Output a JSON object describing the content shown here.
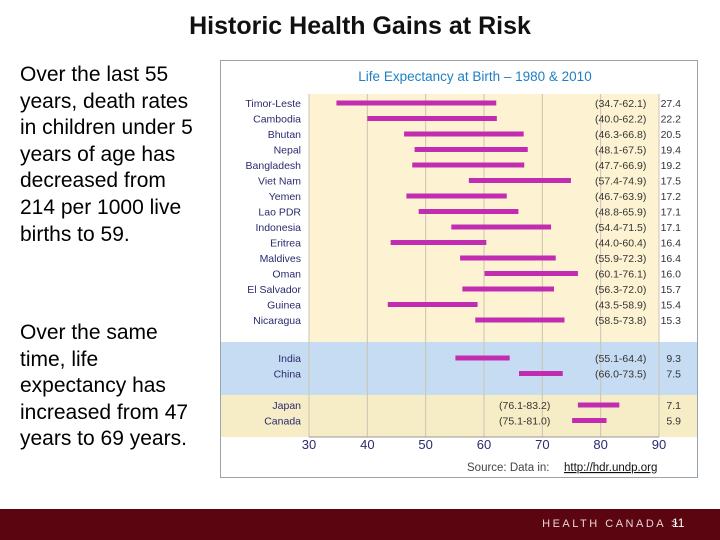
{
  "slide": {
    "title": "Historic Health Gains at Risk",
    "paragraph1": "Over the last 55 years, death rates in children under 5 years of age has decreased from 214 per 1000 live births to 59.",
    "paragraph2": "Over the same time, life expectancy has increased from 47 years to 69 years.",
    "footer_brand": "HEALTH CANADA >",
    "page_number": "11"
  },
  "colors": {
    "bar": "#c12cb0",
    "band_group1": "#fdf3d3",
    "band_group2": "#c6dcf3",
    "band_group3": "#f6ecc6",
    "title": "#1f7fc2",
    "footer_bg": "#5b0510"
  },
  "chart_data": {
    "type": "range-bar",
    "title": "Life Expectancy at Birth – 1980 & 2010",
    "source_label": "Source: Data in:",
    "source_link": "http://hdr.undp.org",
    "xlim": [
      30,
      90
    ],
    "x_ticks": [
      30,
      40,
      50,
      60,
      70,
      80,
      90
    ],
    "series": [
      {
        "name": "Timor-Leste",
        "start": 34.7,
        "end": 62.1,
        "range_label": "(34.7-62.1)",
        "gain": "27.4",
        "group": 1
      },
      {
        "name": "Cambodia",
        "start": 40.0,
        "end": 62.2,
        "range_label": "(40.0-62.2)",
        "gain": "22.2",
        "group": 1
      },
      {
        "name": "Bhutan",
        "start": 46.3,
        "end": 66.8,
        "range_label": "(46.3-66.8)",
        "gain": "20.5",
        "group": 1
      },
      {
        "name": "Nepal",
        "start": 48.1,
        "end": 67.5,
        "range_label": "(48.1-67.5)",
        "gain": "19.4",
        "group": 1
      },
      {
        "name": "Bangladesh",
        "start": 47.7,
        "end": 66.9,
        "range_label": "(47.7-66.9)",
        "gain": "19.2",
        "group": 1
      },
      {
        "name": "Viet Nam",
        "start": 57.4,
        "end": 74.9,
        "range_label": "(57.4-74.9)",
        "gain": "17.5",
        "group": 1
      },
      {
        "name": "Yemen",
        "start": 46.7,
        "end": 63.9,
        "range_label": "(46.7-63.9)",
        "gain": "17.2",
        "group": 1
      },
      {
        "name": "Lao PDR",
        "start": 48.8,
        "end": 65.9,
        "range_label": "(48.8-65.9)",
        "gain": "17.1",
        "group": 1
      },
      {
        "name": "Indonesia",
        "start": 54.4,
        "end": 71.5,
        "range_label": "(54.4-71.5)",
        "gain": "17.1",
        "group": 1
      },
      {
        "name": "Eritrea",
        "start": 44.0,
        "end": 60.4,
        "range_label": "(44.0-60.4)",
        "gain": "16.4",
        "group": 1
      },
      {
        "name": "Maldives",
        "start": 55.9,
        "end": 72.3,
        "range_label": "(55.9-72.3)",
        "gain": "16.4",
        "group": 1
      },
      {
        "name": "Oman",
        "start": 60.1,
        "end": 76.1,
        "range_label": "(60.1-76.1)",
        "gain": "16.0",
        "group": 1
      },
      {
        "name": "El Salvador",
        "start": 56.3,
        "end": 72.0,
        "range_label": "(56.3-72.0)",
        "gain": "15.7",
        "group": 1
      },
      {
        "name": "Guinea",
        "start": 43.5,
        "end": 58.9,
        "range_label": "(43.5-58.9)",
        "gain": "15.4",
        "group": 1
      },
      {
        "name": "Nicaragua",
        "start": 58.5,
        "end": 73.8,
        "range_label": "(58.5-73.8)",
        "gain": "15.3",
        "group": 1
      },
      {
        "name": "India",
        "start": 55.1,
        "end": 64.4,
        "range_label": "(55.1-64.4)",
        "gain": "9.3",
        "group": 2
      },
      {
        "name": "China",
        "start": 66.0,
        "end": 73.5,
        "range_label": "(66.0-73.5)",
        "gain": "7.5",
        "group": 2
      },
      {
        "name": "Japan",
        "start": 76.1,
        "end": 83.2,
        "range_label": "(76.1-83.2)",
        "gain": "7.1",
        "group": 3
      },
      {
        "name": "Canada",
        "start": 75.1,
        "end": 81.0,
        "range_label": "(75.1-81.0)",
        "gain": "5.9",
        "group": 3
      }
    ]
  }
}
